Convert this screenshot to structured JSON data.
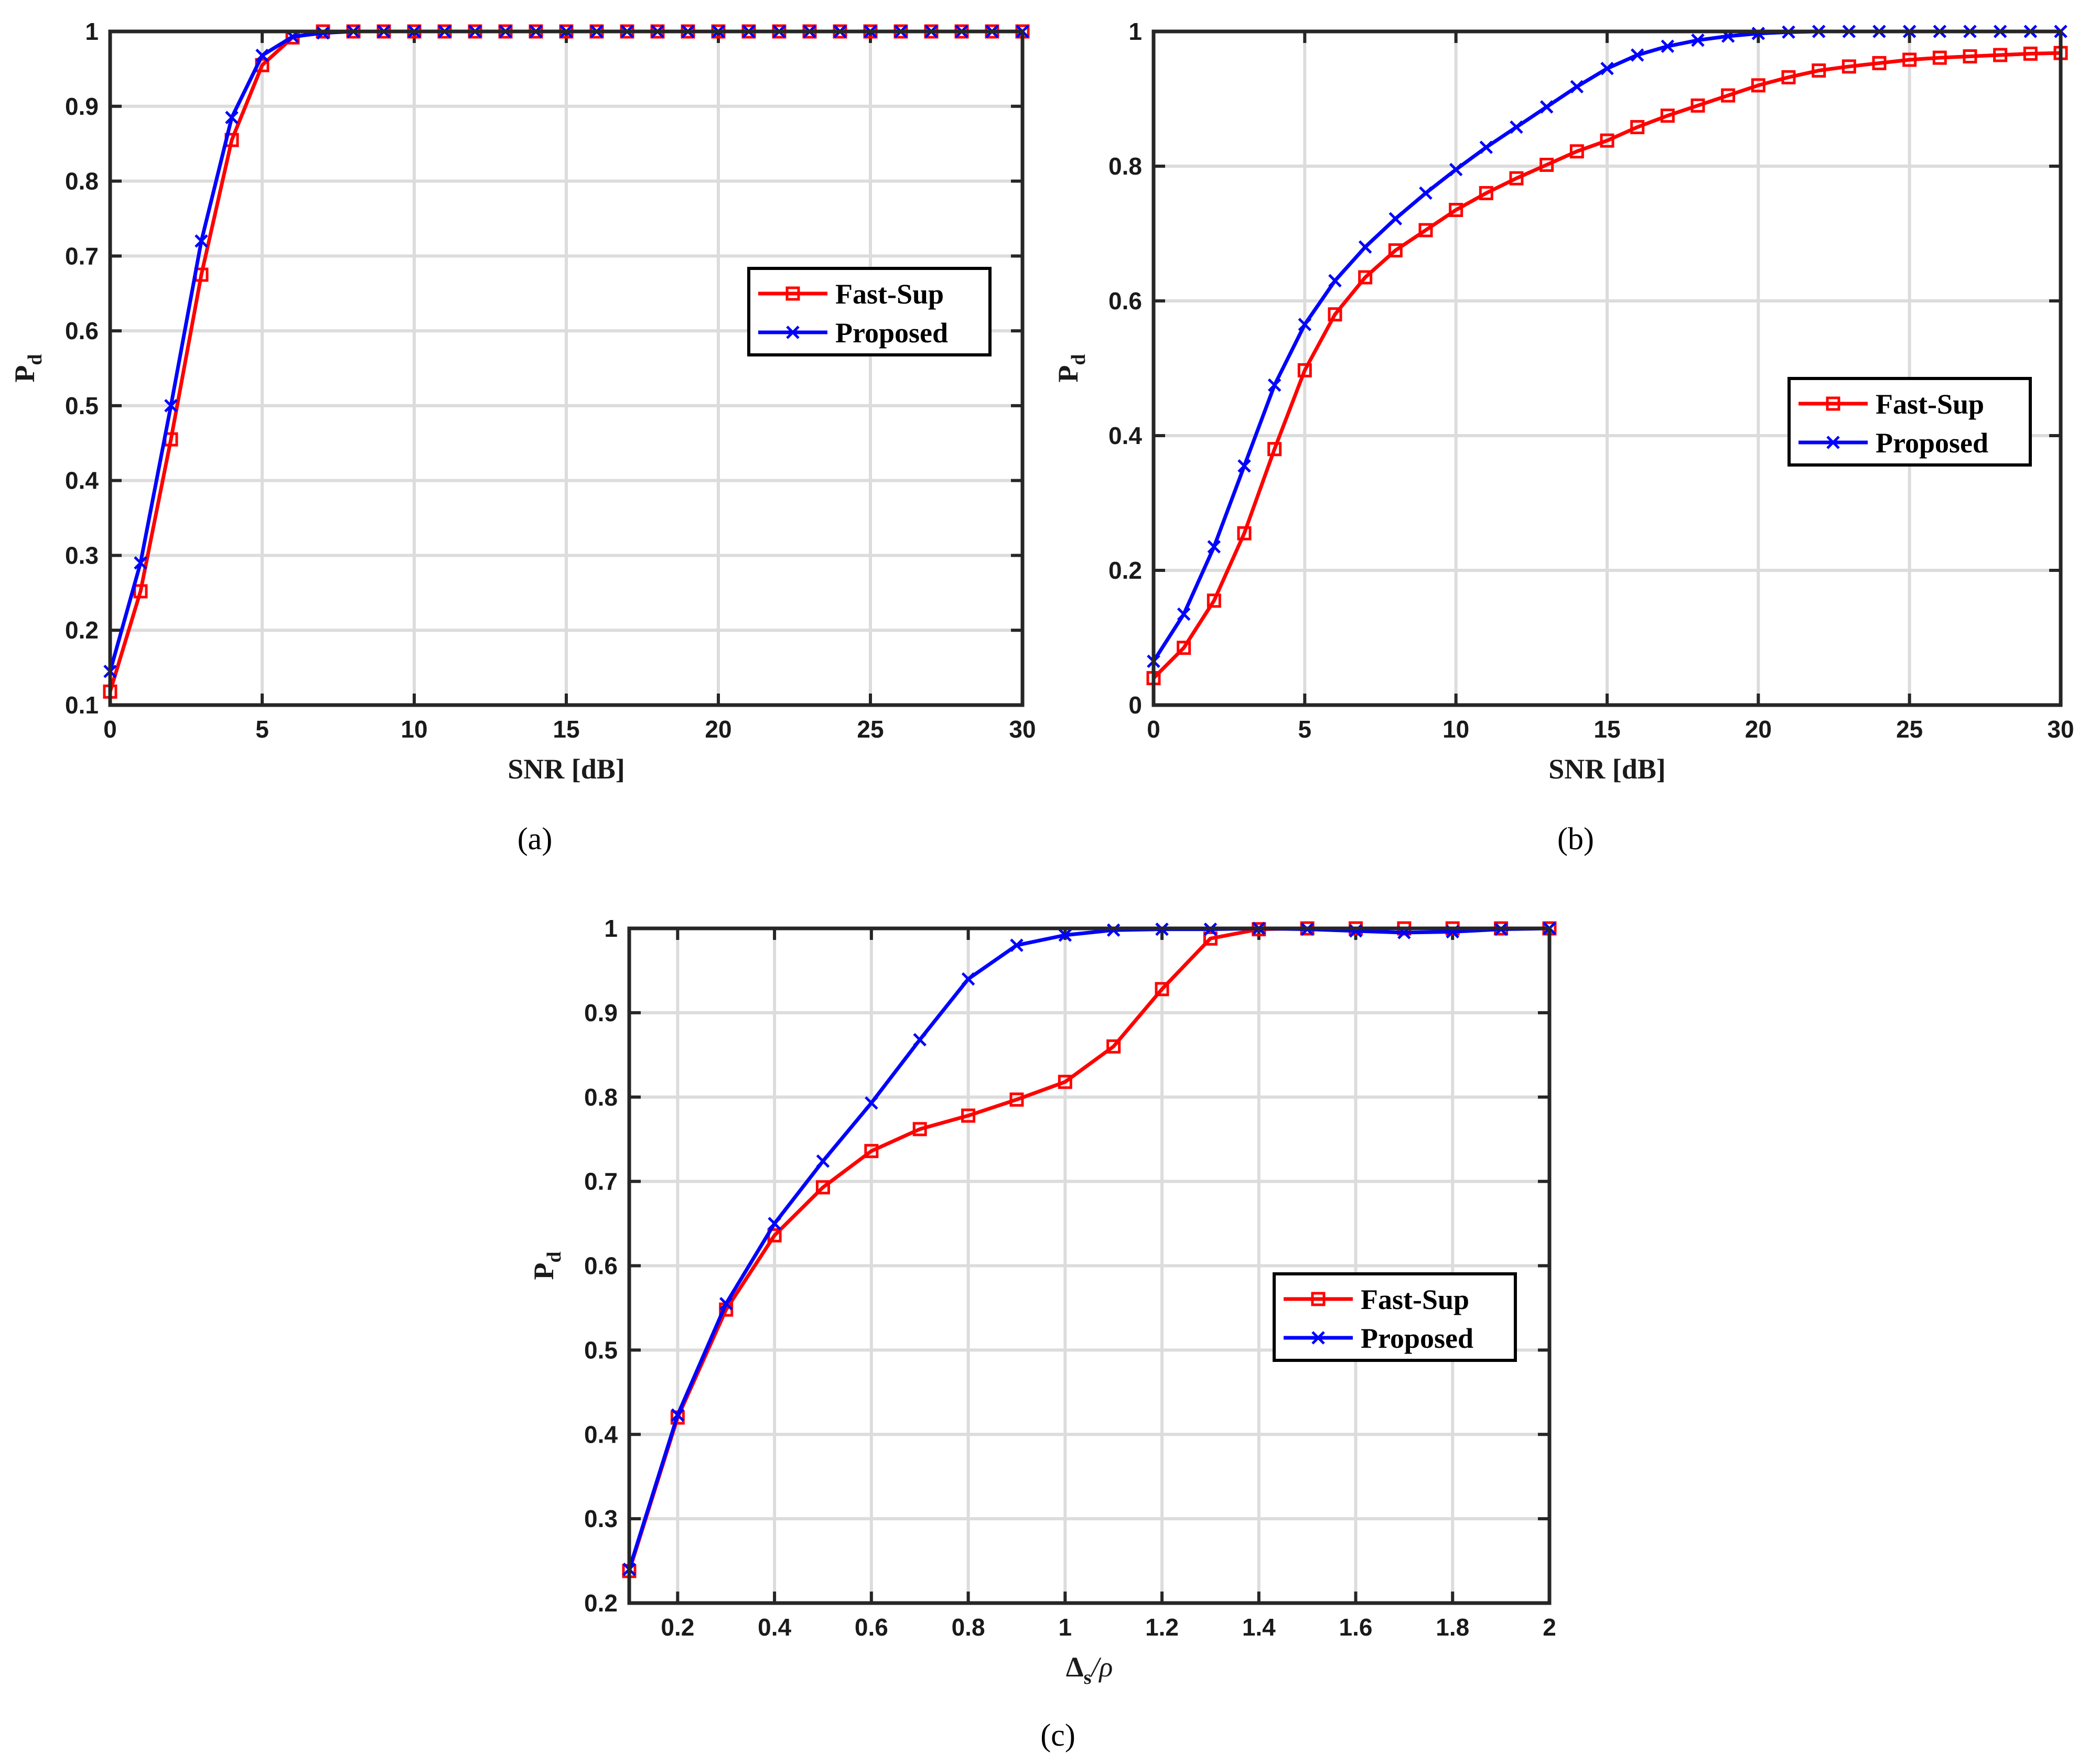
{
  "colors": {
    "fast_sup": "#ff0000",
    "proposed": "#0000ff",
    "grid": "#dcdcdc",
    "axis": "#262626"
  },
  "chart_data": [
    {
      "id": "a",
      "type": "line",
      "caption": "(a)",
      "xlabel": "SNR [dB]",
      "ylabel": {
        "base": "P",
        "sub": "d"
      },
      "xlim": [
        0,
        30
      ],
      "ylim": [
        0.1,
        1
      ],
      "xticks": [
        "0",
        "5",
        "10",
        "15",
        "20",
        "25",
        "30"
      ],
      "xtick_values": [
        0,
        5,
        10,
        15,
        20,
        25,
        30
      ],
      "yticks": [
        "0.1",
        "0.2",
        "0.3",
        "0.4",
        "0.5",
        "0.6",
        "0.7",
        "0.8",
        "0.9",
        "1"
      ],
      "ytick_values": [
        0.1,
        0.2,
        0.3,
        0.4,
        0.5,
        0.6,
        0.7,
        0.8,
        0.9,
        1
      ],
      "grid": true,
      "legend_position": "center-right",
      "x": [
        0,
        1,
        2,
        3,
        4,
        5,
        6,
        7,
        8,
        9,
        10,
        11,
        12,
        13,
        14,
        15,
        16,
        17,
        18,
        19,
        20,
        21,
        22,
        23,
        24,
        25,
        26,
        27,
        28,
        29,
        30
      ],
      "series": [
        {
          "name": "Fast-Sup",
          "marker": "square",
          "values": [
            0.118,
            0.252,
            0.455,
            0.675,
            0.855,
            0.955,
            0.992,
            1,
            1,
            1,
            1,
            1,
            1,
            1,
            1,
            1,
            1,
            1,
            1,
            1,
            1,
            1,
            1,
            1,
            1,
            1,
            1,
            1,
            1,
            1,
            1
          ]
        },
        {
          "name": "Proposed",
          "marker": "x",
          "values": [
            0.145,
            0.29,
            0.5,
            0.72,
            0.885,
            0.968,
            0.993,
            0.998,
            1,
            1,
            1,
            1,
            1,
            1,
            1,
            1,
            1,
            1,
            1,
            1,
            1,
            1,
            1,
            1,
            1,
            1,
            1,
            1,
            1,
            1,
            1
          ]
        }
      ]
    },
    {
      "id": "b",
      "type": "line",
      "caption": "(b)",
      "xlabel": "SNR [dB]",
      "ylabel": {
        "base": "P",
        "sub": "d"
      },
      "xlim": [
        0,
        30
      ],
      "ylim": [
        0,
        1
      ],
      "xticks": [
        "0",
        "5",
        "10",
        "15",
        "20",
        "25",
        "30"
      ],
      "xtick_values": [
        0,
        5,
        10,
        15,
        20,
        25,
        30
      ],
      "yticks": [
        "0",
        "0.2",
        "0.4",
        "0.6",
        "0.8",
        "1"
      ],
      "ytick_values": [
        0,
        0.2,
        0.4,
        0.6,
        0.8,
        1
      ],
      "grid": true,
      "legend_position": "center-right",
      "x": [
        0,
        1,
        2,
        3,
        4,
        5,
        6,
        7,
        8,
        9,
        10,
        11,
        12,
        13,
        14,
        15,
        16,
        17,
        18,
        19,
        20,
        21,
        22,
        23,
        24,
        25,
        26,
        27,
        28,
        29,
        30
      ],
      "series": [
        {
          "name": "Fast-Sup",
          "marker": "square",
          "values": [
            0.04,
            0.085,
            0.155,
            0.255,
            0.38,
            0.497,
            0.58,
            0.635,
            0.675,
            0.705,
            0.735,
            0.76,
            0.782,
            0.802,
            0.822,
            0.838,
            0.858,
            0.875,
            0.89,
            0.905,
            0.92,
            0.932,
            0.942,
            0.948,
            0.953,
            0.958,
            0.961,
            0.963,
            0.965,
            0.967,
            0.968
          ]
        },
        {
          "name": "Proposed",
          "marker": "x",
          "values": [
            0.065,
            0.135,
            0.235,
            0.355,
            0.475,
            0.565,
            0.63,
            0.68,
            0.722,
            0.76,
            0.795,
            0.828,
            0.858,
            0.888,
            0.918,
            0.945,
            0.965,
            0.978,
            0.987,
            0.993,
            0.997,
            0.999,
            1,
            1,
            1,
            1,
            1,
            1,
            1,
            1,
            1
          ]
        }
      ]
    },
    {
      "id": "c",
      "type": "line",
      "caption": "(c)",
      "xlabel": {
        "base": "Δ",
        "sub": "s",
        "suffix": "/ρ"
      },
      "ylabel": {
        "base": "P",
        "sub": "d"
      },
      "xlim": [
        0.1,
        2
      ],
      "ylim": [
        0.2,
        1
      ],
      "xticks": [
        "0.2",
        "0.4",
        "0.6",
        "0.8",
        "1",
        "1.2",
        "1.4",
        "1.6",
        "1.8",
        "2"
      ],
      "xtick_values": [
        0.2,
        0.4,
        0.6,
        0.8,
        1,
        1.2,
        1.4,
        1.6,
        1.8,
        2
      ],
      "yticks": [
        "0.2",
        "0.3",
        "0.4",
        "0.5",
        "0.6",
        "0.7",
        "0.8",
        "0.9",
        "1"
      ],
      "ytick_values": [
        0.2,
        0.3,
        0.4,
        0.5,
        0.6,
        0.7,
        0.8,
        0.9,
        1
      ],
      "grid": true,
      "legend_position": "center-right",
      "x": [
        0.1,
        0.2,
        0.3,
        0.4,
        0.5,
        0.6,
        0.7,
        0.8,
        0.9,
        1.0,
        1.1,
        1.2,
        1.3,
        1.4,
        1.5,
        1.6,
        1.7,
        1.8,
        1.9,
        2.0
      ],
      "series": [
        {
          "name": "Fast-Sup",
          "marker": "square",
          "values": [
            0.238,
            0.42,
            0.548,
            0.636,
            0.693,
            0.736,
            0.762,
            0.778,
            0.797,
            0.818,
            0.86,
            0.928,
            0.988,
            0.999,
            1,
            1,
            1,
            1,
            1,
            1
          ]
        },
        {
          "name": "Proposed",
          "marker": "x",
          "values": [
            0.24,
            0.423,
            0.555,
            0.65,
            0.724,
            0.793,
            0.868,
            0.94,
            0.98,
            0.992,
            0.998,
            0.999,
            0.999,
            1,
            0.999,
            0.997,
            0.995,
            0.996,
            0.999,
            1
          ]
        }
      ]
    }
  ]
}
